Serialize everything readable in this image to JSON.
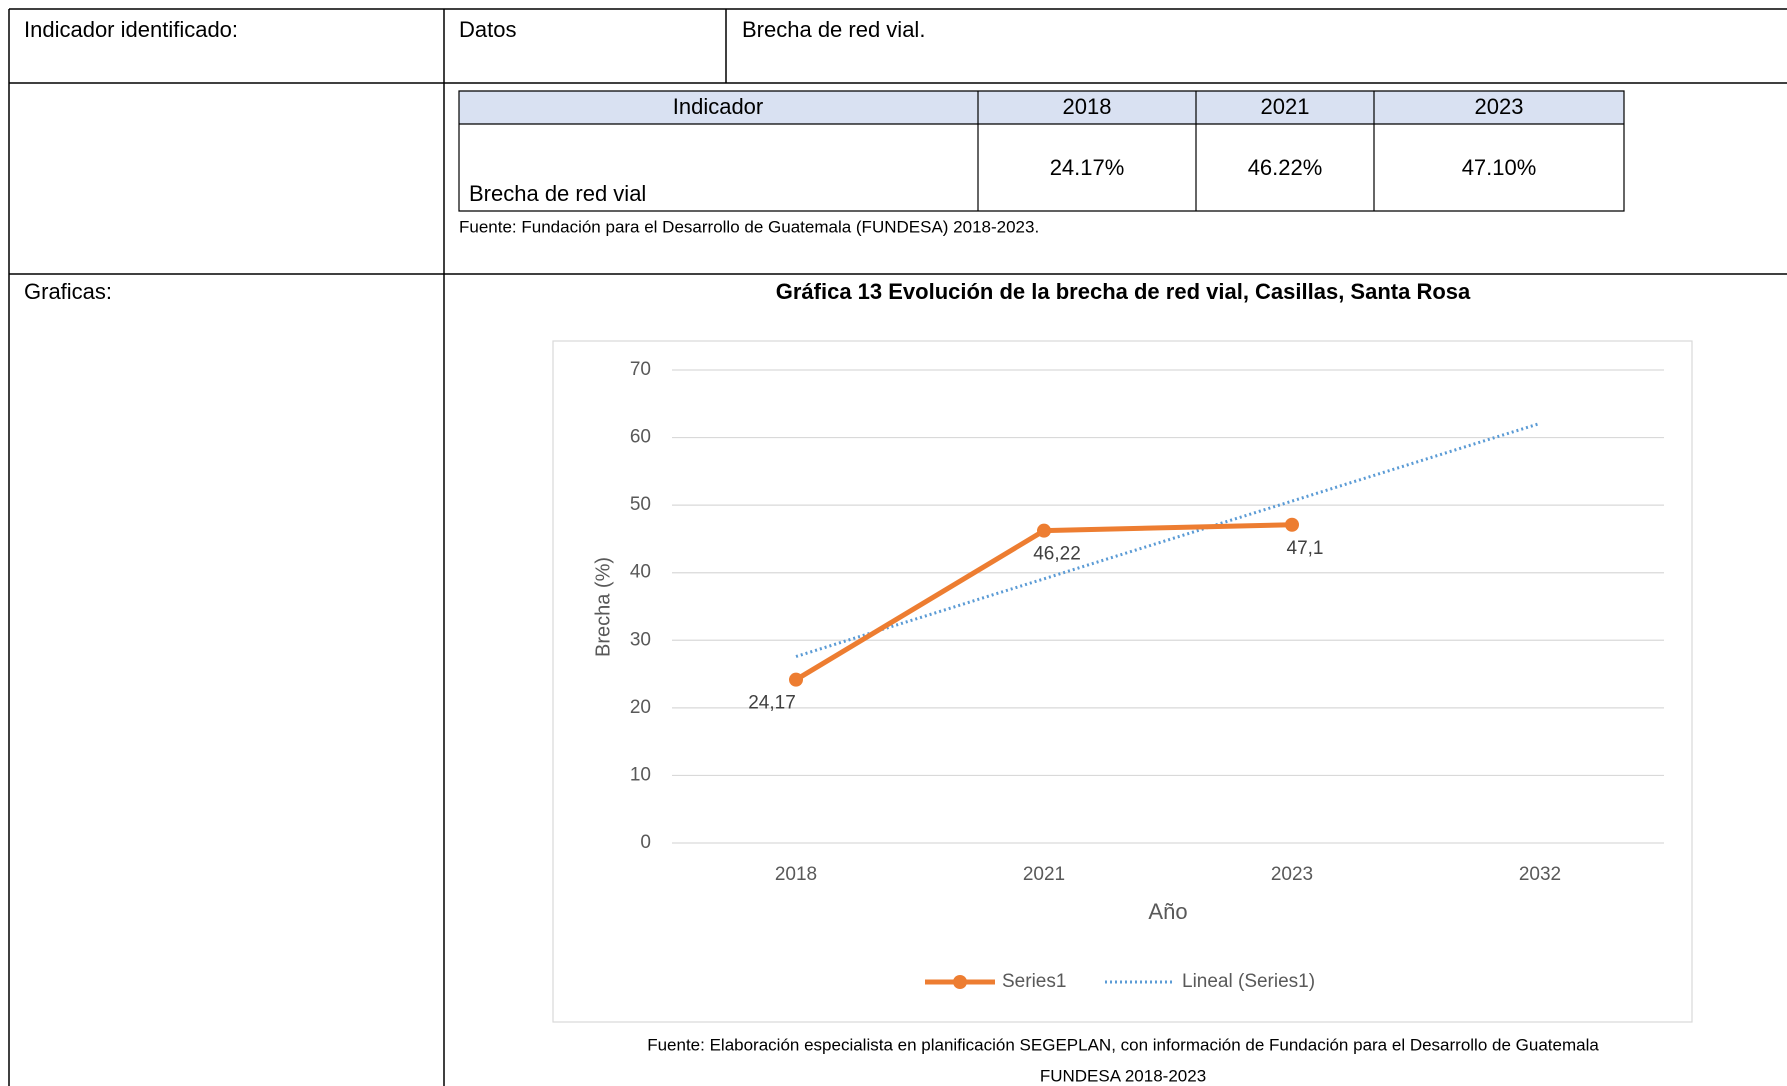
{
  "form": {
    "label_indicator": "Indicador identificado:",
    "label_datos": "Datos",
    "indicator_name": "Brecha de red vial.",
    "label_graficas": "Graficas:"
  },
  "table": {
    "header": [
      "Indicador",
      "2018",
      "2021",
      "2023"
    ],
    "rows": [
      [
        "Brecha de red vial",
        "24.17%",
        "46.22%",
        "47.10%"
      ]
    ],
    "source": "Fuente: Fundación para el Desarrollo de Guatemala (FUNDESA) 2018-2023."
  },
  "chart_data": {
    "type": "line",
    "title": "Gráfica 13 Evolución de la brecha de red vial, Casillas, Santa Rosa",
    "x_label": "Año",
    "y_label": "Brecha (%)",
    "categories": [
      "2018",
      "2021",
      "2023",
      "2032"
    ],
    "series": [
      {
        "name": "Series1",
        "color": "#ed7d31",
        "values": [
          24.17,
          46.22,
          47.1,
          null
        ],
        "value_labels": [
          "24,17",
          "46,22",
          "47,1",
          null
        ]
      },
      {
        "name": "Lineal (Series1)",
        "color": "#5b9bd5",
        "values": [
          27.6,
          39.1,
          50.6,
          62.1
        ],
        "dotted": true
      }
    ],
    "ylim": [
      0,
      70
    ],
    "yticks": [
      0,
      10,
      20,
      30,
      40,
      50,
      60,
      70
    ],
    "grid": true,
    "legend": "bottom",
    "source": [
      "Fuente: Elaboración especialista en planificación SEGEPLAN, con información de Fundación para el Desarrollo de Guatemala",
      "FUNDESA 2018-2023"
    ]
  }
}
